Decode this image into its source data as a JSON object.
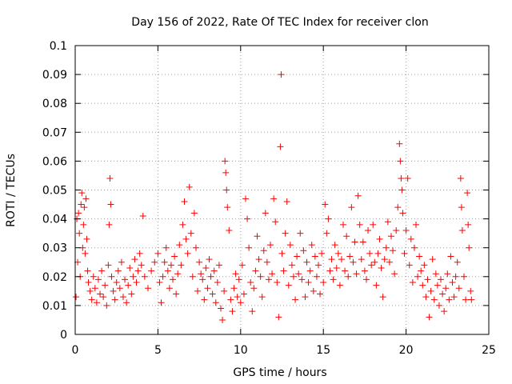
{
  "chart_data": {
    "type": "scatter",
    "title": "Day 156 of 2022, Rate Of TEC Index for receiver clon",
    "xlabel": "GPS time / hours",
    "ylabel": "ROTI / TECUs",
    "xlim": [
      0,
      25
    ],
    "ylim": [
      0,
      0.1
    ],
    "grid": true,
    "marker": "+",
    "x_ticks": [
      {
        "value": 0,
        "label": "0"
      },
      {
        "value": 5,
        "label": "5"
      },
      {
        "value": 10,
        "label": "10"
      },
      {
        "value": 15,
        "label": "15"
      },
      {
        "value": 20,
        "label": "20"
      },
      {
        "value": 25,
        "label": "25"
      }
    ],
    "y_ticks": [
      {
        "value": 0,
        "label": "0"
      },
      {
        "value": 0.01,
        "label": "0.01"
      },
      {
        "value": 0.02,
        "label": "0.02"
      },
      {
        "value": 0.03,
        "label": "0.03"
      },
      {
        "value": 0.04,
        "label": "0.04"
      },
      {
        "value": 0.05,
        "label": "0.05"
      },
      {
        "value": 0.06,
        "label": "0.06"
      },
      {
        "value": 0.07,
        "label": "0.07"
      },
      {
        "value": 0.08,
        "label": "0.08"
      },
      {
        "value": 0.09,
        "label": "0.09"
      },
      {
        "value": 0.1,
        "label": "0.1"
      }
    ],
    "series": [
      {
        "name": "ROTI",
        "color": "#ff0000",
        "points": [
          [
            0.05,
            0.013
          ],
          [
            0.1,
            0.04
          ],
          [
            0.15,
            0.025
          ],
          [
            0.2,
            0.042
          ],
          [
            0.25,
            0.035
          ],
          [
            0.3,
            0.02
          ],
          [
            0.35,
            0.045
          ],
          [
            0.4,
            0.049
          ],
          [
            0.45,
            0.03
          ],
          [
            0.5,
            0.038
          ],
          [
            0.55,
            0.044
          ],
          [
            0.6,
            0.028
          ],
          [
            0.65,
            0.047
          ],
          [
            0.7,
            0.033
          ],
          [
            0.75,
            0.022
          ],
          [
            0.8,
            0.018
          ],
          [
            0.9,
            0.015
          ],
          [
            1.0,
            0.012
          ],
          [
            1.1,
            0.02
          ],
          [
            1.2,
            0.016
          ],
          [
            1.3,
            0.011
          ],
          [
            1.4,
            0.019
          ],
          [
            1.5,
            0.014
          ],
          [
            1.6,
            0.022
          ],
          [
            1.7,
            0.013
          ],
          [
            1.8,
            0.017
          ],
          [
            1.9,
            0.01
          ],
          [
            2.0,
            0.024
          ],
          [
            2.05,
            0.038
          ],
          [
            2.1,
            0.054
          ],
          [
            2.15,
            0.045
          ],
          [
            2.2,
            0.02
          ],
          [
            2.3,
            0.015
          ],
          [
            2.4,
            0.012
          ],
          [
            2.5,
            0.018
          ],
          [
            2.6,
            0.022
          ],
          [
            2.7,
            0.016
          ],
          [
            2.8,
            0.025
          ],
          [
            2.9,
            0.013
          ],
          [
            3.0,
            0.019
          ],
          [
            3.1,
            0.011
          ],
          [
            3.2,
            0.017
          ],
          [
            3.3,
            0.023
          ],
          [
            3.4,
            0.014
          ],
          [
            3.5,
            0.02
          ],
          [
            3.6,
            0.026
          ],
          [
            3.7,
            0.018
          ],
          [
            3.8,
            0.022
          ],
          [
            3.9,
            0.028
          ],
          [
            4.0,
            0.024
          ],
          [
            4.1,
            0.041
          ],
          [
            4.2,
            0.02
          ],
          [
            4.4,
            0.016
          ],
          [
            4.6,
            0.022
          ],
          [
            4.8,
            0.025
          ],
          [
            5.0,
            0.028
          ],
          [
            5.1,
            0.018
          ],
          [
            5.2,
            0.011
          ],
          [
            5.3,
            0.02
          ],
          [
            5.4,
            0.025
          ],
          [
            5.5,
            0.03
          ],
          [
            5.6,
            0.022
          ],
          [
            5.7,
            0.016
          ],
          [
            5.8,
            0.024
          ],
          [
            5.9,
            0.019
          ],
          [
            6.0,
            0.027
          ],
          [
            6.1,
            0.014
          ],
          [
            6.2,
            0.021
          ],
          [
            6.3,
            0.031
          ],
          [
            6.4,
            0.024
          ],
          [
            6.5,
            0.038
          ],
          [
            6.6,
            0.046
          ],
          [
            6.7,
            0.033
          ],
          [
            6.8,
            0.028
          ],
          [
            6.9,
            0.051
          ],
          [
            7.0,
            0.035
          ],
          [
            7.1,
            0.02
          ],
          [
            7.2,
            0.042
          ],
          [
            7.3,
            0.03
          ],
          [
            7.4,
            0.015
          ],
          [
            7.5,
            0.025
          ],
          [
            7.6,
            0.021
          ],
          [
            7.7,
            0.019
          ],
          [
            7.8,
            0.012
          ],
          [
            7.9,
            0.023
          ],
          [
            8.0,
            0.016
          ],
          [
            8.1,
            0.026
          ],
          [
            8.2,
            0.02
          ],
          [
            8.3,
            0.014
          ],
          [
            8.4,
            0.022
          ],
          [
            8.5,
            0.011
          ],
          [
            8.6,
            0.018
          ],
          [
            8.7,
            0.024
          ],
          [
            8.8,
            0.009
          ],
          [
            8.9,
            0.005
          ],
          [
            9.0,
            0.015
          ],
          [
            9.05,
            0.06
          ],
          [
            9.1,
            0.056
          ],
          [
            9.15,
            0.05
          ],
          [
            9.2,
            0.044
          ],
          [
            9.3,
            0.036
          ],
          [
            9.4,
            0.012
          ],
          [
            9.5,
            0.008
          ],
          [
            9.6,
            0.016
          ],
          [
            9.7,
            0.021
          ],
          [
            9.8,
            0.013
          ],
          [
            9.9,
            0.019
          ],
          [
            10.0,
            0.011
          ],
          [
            10.1,
            0.024
          ],
          [
            10.2,
            0.014
          ],
          [
            10.3,
            0.047
          ],
          [
            10.4,
            0.04
          ],
          [
            10.5,
            0.03
          ],
          [
            10.6,
            0.018
          ],
          [
            10.7,
            0.008
          ],
          [
            10.8,
            0.016
          ],
          [
            10.9,
            0.022
          ],
          [
            11.0,
            0.034
          ],
          [
            11.1,
            0.026
          ],
          [
            11.2,
            0.02
          ],
          [
            11.3,
            0.013
          ],
          [
            11.4,
            0.029
          ],
          [
            11.5,
            0.042
          ],
          [
            11.6,
            0.025
          ],
          [
            11.7,
            0.019
          ],
          [
            11.8,
            0.031
          ],
          [
            11.9,
            0.021
          ],
          [
            12.0,
            0.047
          ],
          [
            12.1,
            0.039
          ],
          [
            12.2,
            0.018
          ],
          [
            12.3,
            0.006
          ],
          [
            12.4,
            0.065
          ],
          [
            12.45,
            0.09
          ],
          [
            12.5,
            0.028
          ],
          [
            12.6,
            0.022
          ],
          [
            12.7,
            0.035
          ],
          [
            12.8,
            0.046
          ],
          [
            12.9,
            0.017
          ],
          [
            13.0,
            0.031
          ],
          [
            13.1,
            0.024
          ],
          [
            13.2,
            0.02
          ],
          [
            13.3,
            0.012
          ],
          [
            13.4,
            0.027
          ],
          [
            13.5,
            0.021
          ],
          [
            13.6,
            0.035
          ],
          [
            13.7,
            0.019
          ],
          [
            13.8,
            0.029
          ],
          [
            13.9,
            0.013
          ],
          [
            14.0,
            0.025
          ],
          [
            14.1,
            0.018
          ],
          [
            14.2,
            0.022
          ],
          [
            14.3,
            0.031
          ],
          [
            14.4,
            0.015
          ],
          [
            14.5,
            0.027
          ],
          [
            14.6,
            0.02
          ],
          [
            14.7,
            0.024
          ],
          [
            14.8,
            0.014
          ],
          [
            14.9,
            0.028
          ],
          [
            15.0,
            0.018
          ],
          [
            15.1,
            0.045
          ],
          [
            15.2,
            0.035
          ],
          [
            15.3,
            0.04
          ],
          [
            15.4,
            0.022
          ],
          [
            15.5,
            0.026
          ],
          [
            15.6,
            0.019
          ],
          [
            15.7,
            0.031
          ],
          [
            15.8,
            0.023
          ],
          [
            15.9,
            0.028
          ],
          [
            16.0,
            0.017
          ],
          [
            16.1,
            0.026
          ],
          [
            16.2,
            0.038
          ],
          [
            16.3,
            0.022
          ],
          [
            16.4,
            0.034
          ],
          [
            16.5,
            0.02
          ],
          [
            16.6,
            0.027
          ],
          [
            16.7,
            0.044
          ],
          [
            16.8,
            0.025
          ],
          [
            16.9,
            0.032
          ],
          [
            17.0,
            0.021
          ],
          [
            17.1,
            0.048
          ],
          [
            17.2,
            0.038
          ],
          [
            17.3,
            0.026
          ],
          [
            17.4,
            0.032
          ],
          [
            17.5,
            0.022
          ],
          [
            17.6,
            0.019
          ],
          [
            17.7,
            0.036
          ],
          [
            17.8,
            0.028
          ],
          [
            17.9,
            0.024
          ],
          [
            18.0,
            0.038
          ],
          [
            18.1,
            0.025
          ],
          [
            18.2,
            0.017
          ],
          [
            18.3,
            0.028
          ],
          [
            18.4,
            0.033
          ],
          [
            18.5,
            0.023
          ],
          [
            18.6,
            0.013
          ],
          [
            18.7,
            0.026
          ],
          [
            18.8,
            0.03
          ],
          [
            18.9,
            0.039
          ],
          [
            19.0,
            0.025
          ],
          [
            19.1,
            0.034
          ],
          [
            19.2,
            0.029
          ],
          [
            19.3,
            0.021
          ],
          [
            19.4,
            0.036
          ],
          [
            19.5,
            0.044
          ],
          [
            19.6,
            0.066
          ],
          [
            19.65,
            0.06
          ],
          [
            19.7,
            0.054
          ],
          [
            19.75,
            0.05
          ],
          [
            19.8,
            0.042
          ],
          [
            19.9,
            0.028
          ],
          [
            20.0,
            0.036
          ],
          [
            20.1,
            0.054
          ],
          [
            20.2,
            0.024
          ],
          [
            20.3,
            0.033
          ],
          [
            20.4,
            0.018
          ],
          [
            20.5,
            0.03
          ],
          [
            20.6,
            0.038
          ],
          [
            20.7,
            0.02
          ],
          [
            20.8,
            0.027
          ],
          [
            20.9,
            0.022
          ],
          [
            21.0,
            0.017
          ],
          [
            21.1,
            0.024
          ],
          [
            21.2,
            0.013
          ],
          [
            21.3,
            0.019
          ],
          [
            21.4,
            0.006
          ],
          [
            21.5,
            0.015
          ],
          [
            21.6,
            0.026
          ],
          [
            21.7,
            0.012
          ],
          [
            21.8,
            0.021
          ],
          [
            21.9,
            0.017
          ],
          [
            22.0,
            0.01
          ],
          [
            22.1,
            0.019
          ],
          [
            22.2,
            0.014
          ],
          [
            22.3,
            0.008
          ],
          [
            22.4,
            0.016
          ],
          [
            22.5,
            0.021
          ],
          [
            22.6,
            0.012
          ],
          [
            22.7,
            0.027
          ],
          [
            22.8,
            0.018
          ],
          [
            22.9,
            0.013
          ],
          [
            23.0,
            0.02
          ],
          [
            23.1,
            0.025
          ],
          [
            23.2,
            0.016
          ],
          [
            23.3,
            0.054
          ],
          [
            23.35,
            0.044
          ],
          [
            23.4,
            0.036
          ],
          [
            23.5,
            0.02
          ],
          [
            23.6,
            0.012
          ],
          [
            23.7,
            0.049
          ],
          [
            23.75,
            0.038
          ],
          [
            23.8,
            0.03
          ],
          [
            23.9,
            0.015
          ],
          [
            23.95,
            0.012
          ]
        ]
      }
    ]
  }
}
